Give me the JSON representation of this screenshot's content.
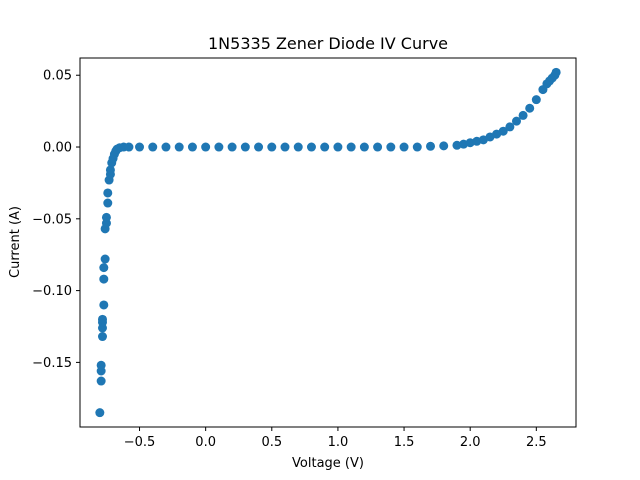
{
  "chart_data": {
    "type": "scatter",
    "title": "1N5335 Zener Diode IV Curve",
    "xlabel": "Voltage (V)",
    "ylabel": "Current (A)",
    "xlim": [
      -0.95,
      2.8
    ],
    "ylim": [
      -0.195,
      0.062
    ],
    "xticks": [
      -0.5,
      0.0,
      0.5,
      1.0,
      1.5,
      2.0,
      2.5
    ],
    "xtick_labels": [
      "−0.5",
      "0.0",
      "0.5",
      "1.0",
      "1.5",
      "2.0",
      "2.5"
    ],
    "yticks": [
      0.05,
      0.0,
      -0.05,
      -0.1,
      -0.15
    ],
    "ytick_labels": [
      "0.05",
      "0.00",
      "−0.05",
      "−0.10",
      "−0.15"
    ],
    "grid": false,
    "marker_color": "#1f77b4",
    "series": [
      {
        "name": "",
        "points": [
          [
            -0.8,
            -0.185
          ],
          [
            -0.79,
            -0.163
          ],
          [
            -0.79,
            -0.156
          ],
          [
            -0.79,
            -0.152
          ],
          [
            -0.78,
            -0.132
          ],
          [
            -0.78,
            -0.126
          ],
          [
            -0.78,
            -0.122
          ],
          [
            -0.78,
            -0.12
          ],
          [
            -0.77,
            -0.11
          ],
          [
            -0.77,
            -0.092
          ],
          [
            -0.77,
            -0.084
          ],
          [
            -0.76,
            -0.078
          ],
          [
            -0.76,
            -0.057
          ],
          [
            -0.75,
            -0.053
          ],
          [
            -0.75,
            -0.049
          ],
          [
            -0.74,
            -0.039
          ],
          [
            -0.74,
            -0.032
          ],
          [
            -0.73,
            -0.023
          ],
          [
            -0.72,
            -0.019
          ],
          [
            -0.72,
            -0.016
          ],
          [
            -0.71,
            -0.011
          ],
          [
            -0.7,
            -0.008
          ],
          [
            -0.69,
            -0.005
          ],
          [
            -0.68,
            -0.003
          ],
          [
            -0.67,
            -0.0015
          ],
          [
            -0.65,
            -0.0005
          ],
          [
            -0.62,
            0.0
          ],
          [
            -0.58,
            0.0
          ],
          [
            -0.5,
            0.0
          ],
          [
            -0.4,
            0.0
          ],
          [
            -0.3,
            0.0
          ],
          [
            -0.2,
            0.0
          ],
          [
            -0.1,
            0.0
          ],
          [
            0.0,
            0.0
          ],
          [
            0.1,
            0.0
          ],
          [
            0.2,
            0.0
          ],
          [
            0.3,
            0.0
          ],
          [
            0.4,
            0.0
          ],
          [
            0.5,
            0.0
          ],
          [
            0.6,
            0.0
          ],
          [
            0.7,
            0.0
          ],
          [
            0.8,
            0.0
          ],
          [
            0.9,
            0.0
          ],
          [
            1.0,
            0.0
          ],
          [
            1.1,
            0.0
          ],
          [
            1.2,
            0.0
          ],
          [
            1.3,
            0.0
          ],
          [
            1.4,
            0.0
          ],
          [
            1.5,
            0.0
          ],
          [
            1.6,
            0.0
          ],
          [
            1.7,
            0.0005
          ],
          [
            1.8,
            0.0008
          ],
          [
            1.9,
            0.0012
          ],
          [
            1.95,
            0.002
          ],
          [
            2.0,
            0.003
          ],
          [
            2.05,
            0.004
          ],
          [
            2.1,
            0.005
          ],
          [
            2.15,
            0.007
          ],
          [
            2.2,
            0.009
          ],
          [
            2.25,
            0.011
          ],
          [
            2.3,
            0.014
          ],
          [
            2.35,
            0.018
          ],
          [
            2.4,
            0.022
          ],
          [
            2.45,
            0.027
          ],
          [
            2.5,
            0.033
          ],
          [
            2.55,
            0.04
          ],
          [
            2.58,
            0.044
          ],
          [
            2.6,
            0.046
          ],
          [
            2.62,
            0.048
          ],
          [
            2.64,
            0.05
          ],
          [
            2.65,
            0.052
          ]
        ]
      }
    ]
  }
}
